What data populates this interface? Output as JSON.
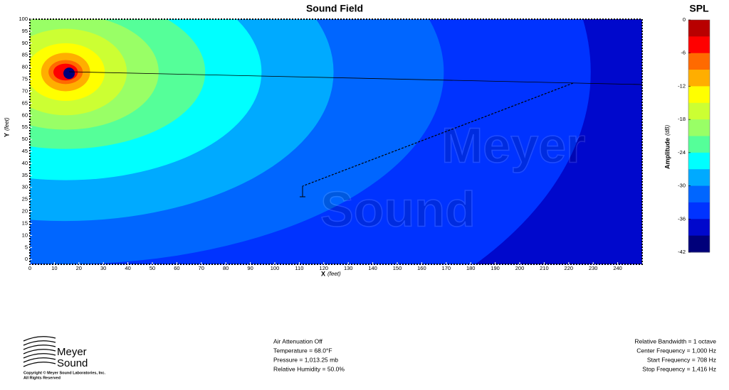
{
  "chart_data": {
    "type": "heatmap",
    "title": "Sound Field",
    "x_label": "X",
    "x_unit": "(feet)",
    "y_label": "Y",
    "y_unit": "(feet)",
    "xlim": [
      0,
      250
    ],
    "ylim": [
      -2,
      100
    ],
    "xticks": [
      0,
      10,
      20,
      30,
      40,
      50,
      60,
      70,
      80,
      90,
      100,
      110,
      120,
      130,
      140,
      150,
      160,
      170,
      180,
      190,
      200,
      210,
      220,
      230,
      240
    ],
    "yticks": [
      0,
      5,
      10,
      15,
      20,
      25,
      30,
      35,
      40,
      45,
      50,
      55,
      60,
      65,
      70,
      75,
      80,
      85,
      90,
      95,
      100
    ],
    "watermark": [
      "Meyer",
      "Sound"
    ],
    "colorbar": {
      "title": "SPL",
      "label": "Amplitude",
      "unit": "(dB)",
      "clim": [
        -42,
        0
      ],
      "ticks": [
        0,
        -6,
        -12,
        -18,
        -24,
        -30,
        -36,
        -42
      ],
      "colors": [
        "#b80000",
        "#ff0000",
        "#ff6a00",
        "#ffae00",
        "#ffff00",
        "#ccff33",
        "#99ff66",
        "#55ff99",
        "#00ffff",
        "#00aaff",
        "#0066ff",
        "#0033ff",
        "#0008cc",
        "#00007a"
      ]
    }
  },
  "footer": {
    "logo": [
      "Meyer",
      "Sound"
    ],
    "copyright": [
      "Copyright © Meyer Sound Laboratories, Inc.",
      "All Rights Reserved"
    ],
    "air": [
      "Air Attenuation Off",
      "Temperature = 68.0°F",
      "Pressure = 1,013.25  mb",
      "Relative Humidity = 50.0%"
    ],
    "frequency": [
      "Relative Bandwidth = 1 octave",
      "Center Frequency = 1,000 Hz",
      "Start Frequency = 708 Hz",
      "Stop Frequency = 1,416 Hz"
    ]
  }
}
